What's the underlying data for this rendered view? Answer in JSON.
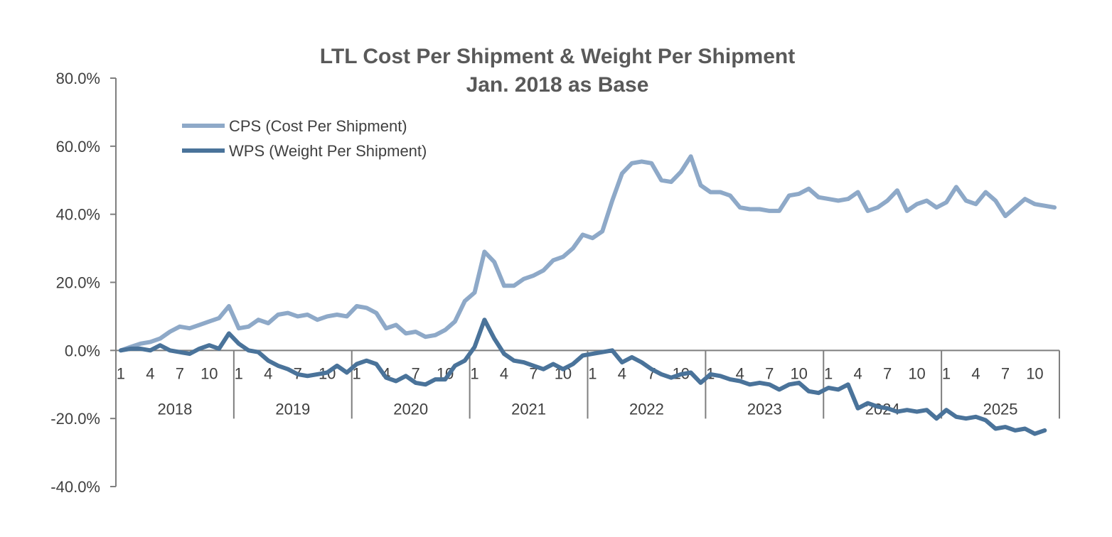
{
  "chart_data": {
    "type": "line",
    "title": "LTL Cost Per Shipment & Weight Per Shipment",
    "subtitle": "Jan. 2018 as Base",
    "xlabel": "",
    "ylabel": "",
    "ylim": [
      -40,
      80
    ],
    "y_ticks": [
      "80.0%",
      "60.0%",
      "40.0%",
      "20.0%",
      "0.0%",
      "-20.0%",
      "-40.0%"
    ],
    "y_tick_values": [
      80,
      60,
      40,
      20,
      0,
      -20,
      -40
    ],
    "x_month_ticks": [
      "1",
      "4",
      "7",
      "10"
    ],
    "x_month_tick_values": [
      1,
      4,
      7,
      10
    ],
    "years": [
      "2018",
      "2019",
      "2020",
      "2021",
      "2022",
      "2023",
      "2024",
      "2025"
    ],
    "months_per_year": 12,
    "legend_position": "top-left",
    "grid": false,
    "series": [
      {
        "name": "CPS (Cost Per Shipment)",
        "color": "#8ea9c8",
        "values": [
          0,
          1,
          2,
          2.5,
          3.5,
          5.5,
          7,
          6.5,
          7.5,
          8.5,
          9.5,
          13,
          6.5,
          7,
          9,
          8,
          10.5,
          11,
          10,
          10.5,
          9,
          10,
          10.5,
          10,
          13,
          12.5,
          11,
          6.5,
          7.5,
          5,
          5.5,
          4,
          4.5,
          6,
          8.5,
          14.5,
          17,
          29,
          26,
          19,
          19,
          21,
          22,
          23.5,
          26.5,
          27.5,
          30,
          34,
          33,
          35,
          44,
          52,
          55,
          55.5,
          55,
          50,
          49.5,
          52.5,
          57,
          48.5,
          46.5,
          46.5,
          45.5,
          42,
          41.5,
          41.5,
          41,
          41,
          45.5,
          46,
          47.5,
          45,
          44.5,
          44,
          44.5,
          46.5,
          41,
          42,
          44,
          47,
          41,
          43,
          44,
          42,
          43.5,
          48,
          44,
          43,
          46.5,
          44,
          39.5,
          42,
          44.5,
          43,
          42.5,
          42
        ]
      },
      {
        "name": "WPS (Weight Per Shipment)",
        "color": "#4a739a",
        "values": [
          0,
          0.5,
          0.5,
          0,
          1.5,
          0,
          -0.5,
          -1,
          0.5,
          1.5,
          0.5,
          5,
          2,
          0,
          -0.5,
          -3,
          -4.5,
          -5.5,
          -7,
          -7.5,
          -7,
          -6.5,
          -4.5,
          -6.5,
          -4,
          -3,
          -4,
          -8,
          -9,
          -7.5,
          -9.5,
          -10,
          -8.5,
          -8.5,
          -4.5,
          -3,
          1,
          9,
          3.5,
          -1,
          -3,
          -3.5,
          -4.5,
          -5.5,
          -4,
          -5.5,
          -4,
          -1.5,
          -1,
          -0.5,
          0,
          -3.5,
          -2,
          -3.5,
          -5.5,
          -7,
          -8,
          -7,
          -6.5,
          -9.5,
          -7,
          -7.5,
          -8.5,
          -9,
          -10,
          -9.5,
          -10,
          -11.5,
          -10,
          -9.5,
          -12,
          -12.5,
          -11,
          -11.5,
          -10,
          -17,
          -15.5,
          -16.5,
          -17,
          -18,
          -17.5,
          -18,
          -17.5,
          -20,
          -17.5,
          -19.5,
          -20,
          -19.5,
          -20.5,
          -23,
          -22.5,
          -23.5,
          -23,
          -24.5,
          -23.5
        ]
      }
    ]
  }
}
